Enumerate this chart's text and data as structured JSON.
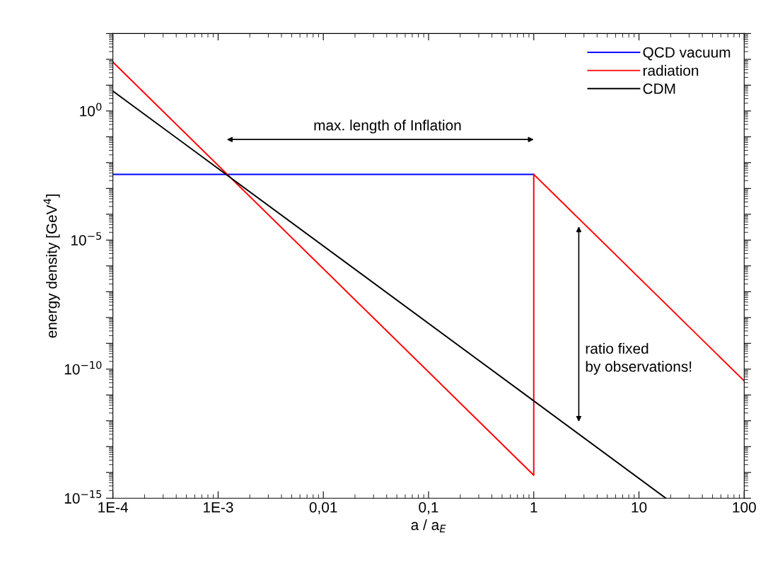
{
  "chart_data": {
    "type": "line",
    "xlabel": "a / a$_{E}$",
    "ylabel": "energy density [GeV$^{4}$]",
    "log": "xy",
    "xlim": [
      0.0001,
      100
    ],
    "xticks": [
      {
        "value": 0.0001,
        "label": "1E-4"
      },
      {
        "value": 0.001,
        "label": "1E-3"
      },
      {
        "value": 0.01,
        "label": "0,01"
      },
      {
        "value": 0.1,
        "label": "0,1"
      },
      1,
      10,
      100
    ],
    "ylim": [
      1e-15,
      1000
    ],
    "yticks": [
      {
        "value": 1e-15,
        "label": "10$^{−15}$"
      },
      {
        "value": 1e-14,
        "label": null
      },
      {
        "value": 1e-13,
        "label": null
      },
      {
        "value": 1e-12,
        "label": null
      },
      {
        "value": 1e-11,
        "label": null
      },
      {
        "value": 1e-10,
        "label": "10$^{−10}$"
      },
      {
        "value": 1e-09,
        "label": null
      },
      {
        "value": 1e-08,
        "label": null
      },
      {
        "value": 1e-07,
        "label": null
      },
      {
        "value": 1e-06,
        "label": null
      },
      {
        "value": 1e-05,
        "label": "10$^{−5}$"
      },
      {
        "value": 0.0001,
        "label": null
      },
      {
        "value": 0.001,
        "label": null
      },
      {
        "value": 0.01,
        "label": null
      },
      {
        "value": 0.1,
        "label": null
      },
      {
        "value": 1,
        "label": "10$^{0}$"
      },
      {
        "value": 10,
        "label": null
      },
      {
        "value": 100,
        "label": null
      },
      {
        "value": 1000,
        "label": null
      }
    ],
    "series": [
      {
        "name": "QCD vacuum",
        "color": "#0000ff",
        "x": [
          0.0001,
          1
        ],
        "values": [
          0.0035,
          0.0035
        ]
      },
      {
        "name": "radiation",
        "color": "#ff0000",
        "x": [
          0.0001,
          1,
          1,
          100
        ],
        "values": [
          78,
          7.8e-15,
          0.0035,
          3.5e-11
        ]
      },
      {
        "name": "CDM",
        "color": "#000000",
        "x": [
          0.0001,
          1,
          18
        ],
        "values": [
          5.9,
          5.9e-12,
          1e-15
        ]
      }
    ],
    "annotations": [
      "max. length of Inflation",
      "ratio fixed\nby observations!"
    ],
    "legend": "top right",
    "grid": false,
    "marker": "none",
    "line_style": "solid"
  }
}
